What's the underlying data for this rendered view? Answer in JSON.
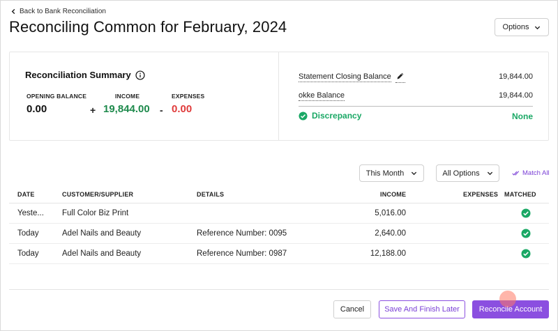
{
  "header": {
    "back_label": "Back to Bank Reconciliation",
    "title": "Reconciling Common for February, 2024",
    "options_label": "Options"
  },
  "summary": {
    "title": "Reconciliation Summary",
    "opening_label": "OPENING BALANCE",
    "opening_value": "0.00",
    "plus": "+",
    "income_label": "INCOME",
    "income_value": "19,844.00",
    "minus": "-",
    "expenses_label": "EXPENSES",
    "expenses_value": "0.00",
    "statement_label": "Statement Closing Balance",
    "statement_value": "19,844.00",
    "okke_label": "okke Balance",
    "okke_value": "19,844.00",
    "discrepancy_label": "Discrepancy",
    "discrepancy_value": "None"
  },
  "filters": {
    "period_label": "This Month",
    "options_label": "All Options",
    "match_all_label": "Match All"
  },
  "table": {
    "columns": [
      "DATE",
      "CUSTOMER/SUPPLIER",
      "DETAILS",
      "INCOME",
      "EXPENSES",
      "MATCHED"
    ],
    "rows": [
      {
        "date": "Yeste...",
        "customer": "Full Color Biz Print",
        "details": "",
        "income": "5,016.00",
        "expenses": ""
      },
      {
        "date": "Today",
        "customer": "Adel Nails and Beauty",
        "details": "Reference Number: 0095",
        "income": "2,640.00",
        "expenses": ""
      },
      {
        "date": "Today",
        "customer": "Adel Nails and Beauty",
        "details": "Reference Number: 0987",
        "income": "12,188.00",
        "expenses": ""
      }
    ]
  },
  "footer": {
    "cancel_label": "Cancel",
    "save_label": "Save And Finish Later",
    "reconcile_label": "Reconcile Account"
  },
  "colors": {
    "accent": "#8b4fe0",
    "income_green": "#1e8a4c",
    "expense_red": "#e03b3b",
    "success_green": "#1aa865"
  },
  "icons": {
    "back": "chevron-left-icon",
    "info": "info-icon",
    "edit": "pencil-icon",
    "check": "check-circle-icon",
    "dropdown": "chevron-down-icon",
    "match": "double-check-icon"
  }
}
